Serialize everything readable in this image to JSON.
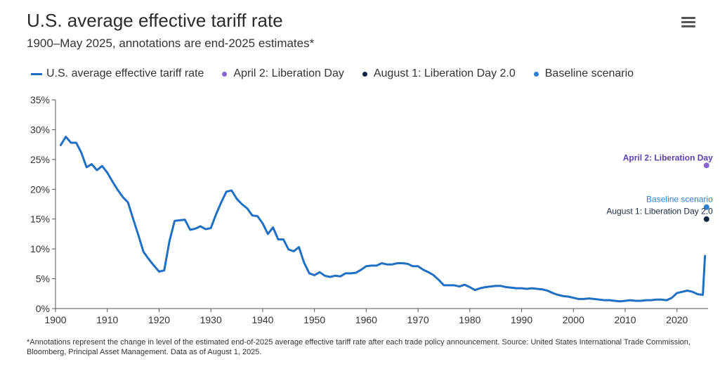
{
  "title": "U.S. average effective tariff rate",
  "subtitle": "1900–May 2025, annotations are end-2025 estimates*",
  "menu_icon": "hamburger-menu-icon",
  "legend": [
    {
      "label": "U.S. average effective tariff rate",
      "color": "#1f6fc5",
      "kind": "line"
    },
    {
      "label": "April 2: Liberation Day",
      "color": "#8a63d2",
      "kind": "dot"
    },
    {
      "label": "August 1: Liberation Day 2.0",
      "color": "#0d2240",
      "kind": "dot"
    },
    {
      "label": "Baseline scenario",
      "color": "#2f7fd0",
      "kind": "dot"
    }
  ],
  "footnote": "*Annotations represent the change in level of the estimated end-of-2025 average effective tariff rate after each trade policy announcement. Source: United States International Trade Commission, Bloomberg, Principal Asset Management. Data as of August 1, 2025.",
  "chart_data": {
    "type": "line",
    "title": "U.S. average effective tariff rate",
    "xlabel": "",
    "ylabel": "",
    "xlim": [
      1900,
      2026
    ],
    "ylim": [
      0,
      35
    ],
    "x_ticks": [
      "1900",
      "1910",
      "1920",
      "1930",
      "1940",
      "1950",
      "1960",
      "1970",
      "1980",
      "1990",
      "2000",
      "2010",
      "2020"
    ],
    "y_ticks": [
      "0%",
      "5%",
      "10%",
      "15%",
      "20%",
      "25%",
      "30%",
      "35%"
    ],
    "series": [
      {
        "name": "U.S. average effective tariff rate",
        "color": "#1f6fc5",
        "x": [
          1901,
          1902,
          1903,
          1904,
          1905,
          1906,
          1907,
          1908,
          1909,
          1910,
          1911,
          1912,
          1913,
          1914,
          1915,
          1916,
          1917,
          1918,
          1919,
          1920,
          1921,
          1922,
          1923,
          1924,
          1925,
          1926,
          1927,
          1928,
          1929,
          1930,
          1931,
          1932,
          1933,
          1934,
          1935,
          1936,
          1937,
          1938,
          1939,
          1940,
          1941,
          1942,
          1943,
          1944,
          1945,
          1946,
          1947,
          1948,
          1949,
          1950,
          1951,
          1952,
          1953,
          1954,
          1955,
          1956,
          1957,
          1958,
          1959,
          1960,
          1961,
          1962,
          1963,
          1964,
          1965,
          1966,
          1967,
          1968,
          1969,
          1970,
          1971,
          1972,
          1973,
          1974,
          1975,
          1976,
          1977,
          1978,
          1979,
          1980,
          1981,
          1982,
          1983,
          1984,
          1985,
          1986,
          1987,
          1988,
          1989,
          1990,
          1991,
          1992,
          1993,
          1994,
          1995,
          1996,
          1997,
          1998,
          1999,
          2000,
          2001,
          2002,
          2003,
          2004,
          2005,
          2006,
          2007,
          2008,
          2009,
          2010,
          2011,
          2012,
          2013,
          2014,
          2015,
          2016,
          2017,
          2018,
          2019,
          2020,
          2021,
          2022,
          2023,
          2024,
          2025,
          2025.4
        ],
        "values": [
          27.4,
          28.8,
          27.8,
          27.8,
          26.1,
          23.7,
          24.2,
          23.2,
          23.9,
          22.8,
          21.3,
          19.9,
          18.7,
          17.8,
          15.0,
          12.3,
          9.5,
          8.3,
          7.2,
          6.2,
          6.4,
          11.3,
          14.7,
          14.8,
          14.9,
          13.2,
          13.4,
          13.8,
          13.3,
          13.5,
          15.8,
          17.8,
          19.6,
          19.8,
          18.4,
          17.5,
          16.8,
          15.6,
          15.5,
          14.3,
          12.5,
          13.6,
          11.6,
          11.6,
          9.9,
          9.6,
          10.3,
          7.7,
          5.9,
          5.6,
          6.1,
          5.5,
          5.3,
          5.5,
          5.4,
          5.9,
          5.9,
          6.0,
          6.5,
          7.1,
          7.2,
          7.2,
          7.6,
          7.4,
          7.4,
          7.6,
          7.6,
          7.5,
          7.1,
          7.1,
          6.5,
          6.1,
          5.6,
          4.8,
          3.9,
          3.9,
          3.9,
          3.7,
          4.0,
          3.6,
          3.1,
          3.4,
          3.6,
          3.7,
          3.8,
          3.8,
          3.6,
          3.5,
          3.4,
          3.4,
          3.3,
          3.4,
          3.3,
          3.2,
          3.0,
          2.6,
          2.3,
          2.1,
          2.0,
          1.8,
          1.6,
          1.6,
          1.7,
          1.6,
          1.5,
          1.4,
          1.4,
          1.3,
          1.2,
          1.3,
          1.4,
          1.3,
          1.3,
          1.4,
          1.4,
          1.5,
          1.5,
          1.4,
          1.8,
          2.6,
          2.8,
          3.0,
          2.8,
          2.4,
          2.3,
          8.8
        ]
      }
    ],
    "annotations": [
      {
        "label": "April 2: Liberation Day",
        "x": 2025.7,
        "y": 24.0,
        "color": "#8a63d2",
        "label_color": "#5b3fb0",
        "bold": true
      },
      {
        "label": "Baseline scenario",
        "x": 2025.7,
        "y": 17.0,
        "color": "#2f7fd0",
        "label_color": "#2f7fd0",
        "bold": false
      },
      {
        "label": "August 1: Liberation Day 2.0",
        "x": 2025.7,
        "y": 15.0,
        "color": "#0d2240",
        "label_color": "#1a2a44",
        "bold": false
      }
    ]
  }
}
